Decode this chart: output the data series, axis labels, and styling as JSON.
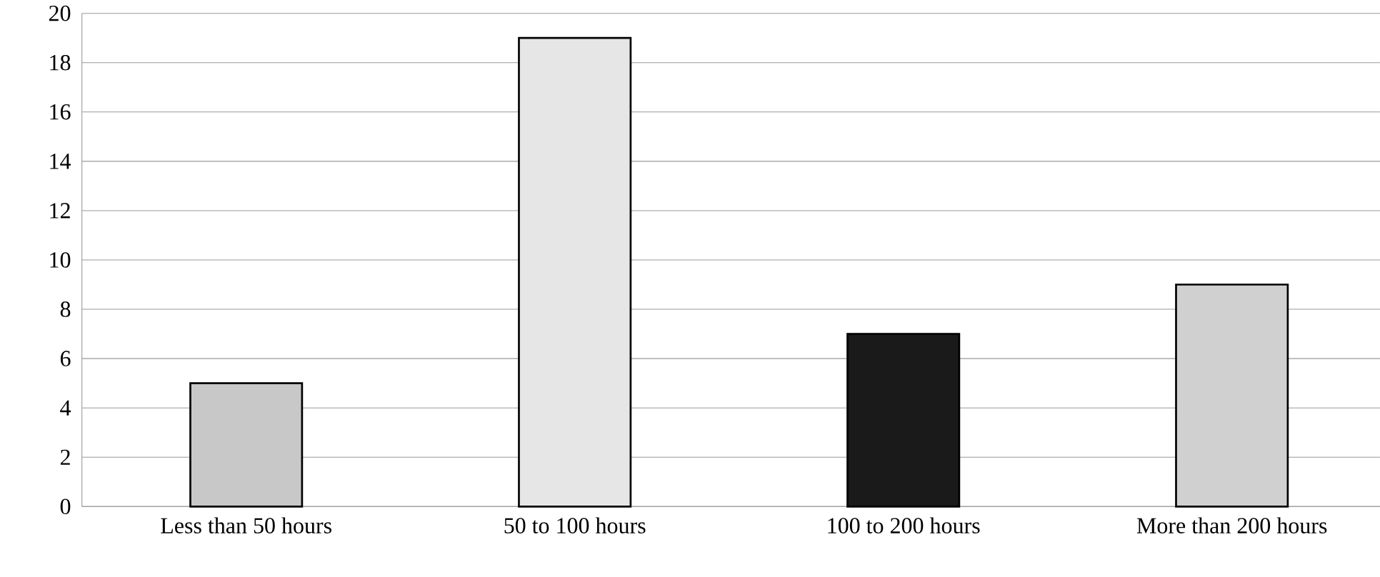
{
  "chart_data": {
    "type": "bar",
    "categories": [
      "Less than 50 hours",
      "50 to 100 hours",
      "100 to 200 hours",
      "More than 200 hours"
    ],
    "values": [
      5,
      19,
      7,
      9
    ],
    "colors": [
      "#c8c8c8",
      "#e6e6e6",
      "#1a1a1a",
      "#d0d0d0"
    ],
    "ylim": [
      0,
      20
    ],
    "yticks": [
      0,
      2,
      4,
      6,
      8,
      10,
      12,
      14,
      16,
      18,
      20
    ],
    "grid": "y"
  }
}
